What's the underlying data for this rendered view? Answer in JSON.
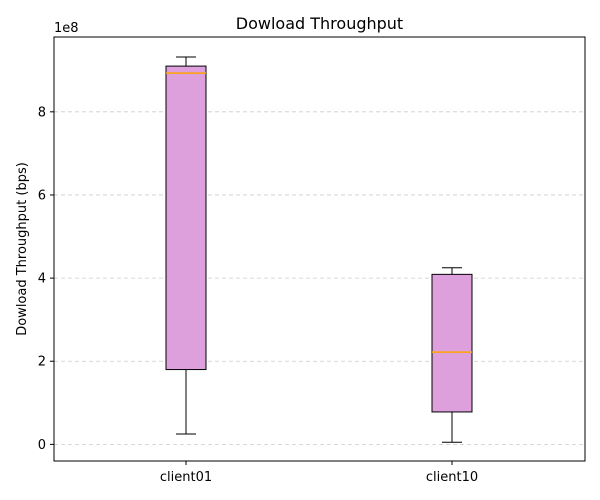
{
  "chart_data": {
    "type": "box",
    "title": "Dowload Throughput",
    "xlabel": "",
    "ylabel": "Dowload Throughput (bps)",
    "y_multiplier_label": "1e8",
    "ylim": [
      -40000000,
      980000000
    ],
    "yticks": [
      {
        "value": 0,
        "label": "0"
      },
      {
        "value": 200000000,
        "label": "2"
      },
      {
        "value": 400000000,
        "label": "4"
      },
      {
        "value": 600000000,
        "label": "6"
      },
      {
        "value": 800000000,
        "label": "8"
      }
    ],
    "grid": "horizontal-dashed",
    "colors": {
      "box_fill": "#dda0dd",
      "median": "#ffa500",
      "grid": "#cccccc",
      "edge": "#000000"
    },
    "categories": [
      "client01",
      "client10"
    ],
    "boxes": [
      {
        "category": "client01",
        "whisker_low": 25000000,
        "q1": 180000000,
        "median": 893000000,
        "q3": 910000000,
        "whisker_high": 932000000
      },
      {
        "category": "client10",
        "whisker_low": 5000000,
        "q1": 78000000,
        "median": 222000000,
        "q3": 409000000,
        "whisker_high": 425000000
      }
    ]
  }
}
